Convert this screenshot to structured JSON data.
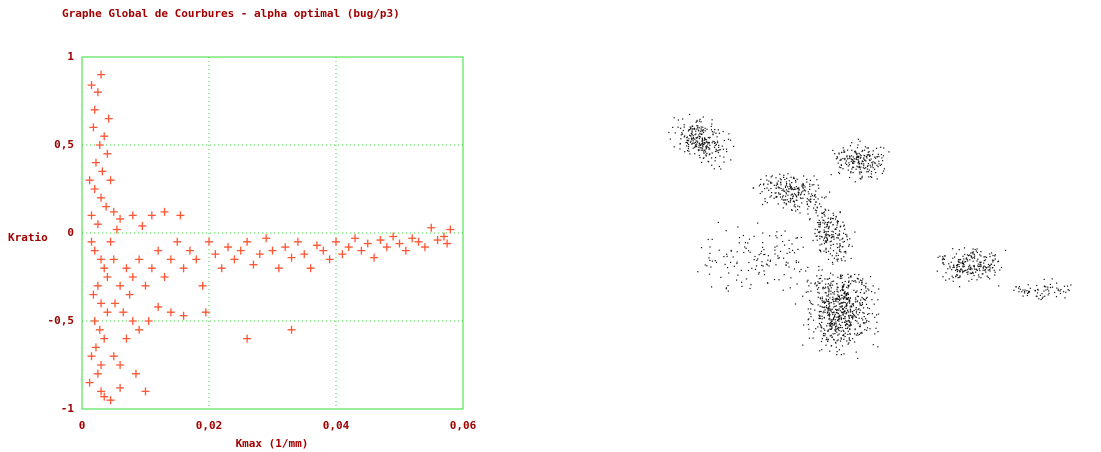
{
  "chart_data": {
    "type": "scatter",
    "title": "Graphe Global de Courbures - alpha optimal (bug/p3)",
    "x_label": "Kmax (1/mm)",
    "y_label": "Kratio",
    "xlim": [
      0,
      0.06
    ],
    "xticks": [
      0,
      {
        "value": 0.02,
        "label": "0,02"
      },
      {
        "value": 0.04,
        "label": "0,04"
      },
      {
        "value": 0.06,
        "label": "0,06"
      }
    ],
    "ylim": [
      -1,
      1
    ],
    "yticks": [
      -1,
      {
        "value": -0.5,
        "label": "-0,5"
      },
      0,
      {
        "value": 0.5,
        "label": "0,5"
      },
      1
    ],
    "grid": true,
    "color": "#ff5533",
    "x": [
      0.0015,
      0.003,
      0.0025,
      0.002,
      0.0035,
      0.0028,
      0.004,
      0.0022,
      0.0032,
      0.0045,
      0.002,
      0.003,
      0.0038,
      0.0015,
      0.0025,
      0.005,
      0.006,
      0.008,
      0.011,
      0.013,
      0.0155,
      0.0015,
      0.002,
      0.003,
      0.0035,
      0.004,
      0.0025,
      0.0018,
      0.003,
      0.004,
      0.002,
      0.0028,
      0.0035,
      0.0022,
      0.0015,
      0.003,
      0.0025,
      0.0012,
      0.003,
      0.0045,
      0.0035,
      0.005,
      0.006,
      0.007,
      0.0065,
      0.008,
      0.009,
      0.0105,
      0.012,
      0.014,
      0.016,
      0.0195,
      0.006,
      0.007,
      0.008,
      0.009,
      0.01,
      0.011,
      0.012,
      0.013,
      0.014,
      0.015,
      0.016,
      0.017,
      0.018,
      0.019,
      0.02,
      0.021,
      0.022,
      0.023,
      0.024,
      0.025,
      0.026,
      0.027,
      0.028,
      0.029,
      0.03,
      0.031,
      0.032,
      0.033,
      0.034,
      0.035,
      0.036,
      0.037,
      0.038,
      0.039,
      0.04,
      0.041,
      0.042,
      0.043,
      0.044,
      0.045,
      0.046,
      0.047,
      0.048,
      0.049,
      0.05,
      0.051,
      0.052,
      0.053,
      0.054,
      0.055,
      0.056,
      0.057,
      0.058,
      0.0575,
      0.026,
      0.033,
      0.0085,
      0.01,
      0.006,
      0.0075,
      0.0045,
      0.005,
      0.0055,
      0.0018,
      0.0042,
      0.0012,
      0.0052,
      0.0095
    ],
    "y": [
      0.84,
      0.9,
      0.8,
      0.7,
      0.55,
      0.5,
      0.45,
      0.4,
      0.35,
      0.3,
      0.25,
      0.2,
      0.15,
      0.1,
      0.05,
      0.12,
      0.08,
      0.1,
      0.1,
      0.12,
      0.1,
      -0.05,
      -0.1,
      -0.15,
      -0.2,
      -0.25,
      -0.3,
      -0.35,
      -0.4,
      -0.45,
      -0.5,
      -0.55,
      -0.6,
      -0.65,
      -0.7,
      -0.75,
      -0.8,
      -0.85,
      -0.9,
      -0.95,
      -0.93,
      -0.7,
      -0.75,
      -0.6,
      -0.45,
      -0.5,
      -0.55,
      -0.5,
      -0.42,
      -0.45,
      -0.47,
      -0.45,
      -0.3,
      -0.2,
      -0.25,
      -0.15,
      -0.3,
      -0.2,
      -0.1,
      -0.25,
      -0.15,
      -0.05,
      -0.2,
      -0.1,
      -0.15,
      -0.3,
      -0.05,
      -0.12,
      -0.2,
      -0.08,
      -0.15,
      -0.1,
      -0.05,
      -0.18,
      -0.12,
      -0.03,
      -0.1,
      -0.2,
      -0.08,
      -0.14,
      -0.05,
      -0.12,
      -0.2,
      -0.07,
      -0.1,
      -0.15,
      -0.05,
      -0.12,
      -0.08,
      -0.03,
      -0.1,
      -0.06,
      -0.14,
      -0.04,
      -0.08,
      -0.02,
      -0.06,
      -0.1,
      -0.03,
      -0.05,
      -0.08,
      0.03,
      -0.04,
      -0.02,
      0.02,
      -0.06,
      -0.6,
      -0.55,
      -0.8,
      -0.9,
      -0.88,
      -0.35,
      -0.05,
      -0.15,
      0.02,
      0.6,
      0.65,
      0.3,
      -0.4,
      0.04
    ]
  }
}
